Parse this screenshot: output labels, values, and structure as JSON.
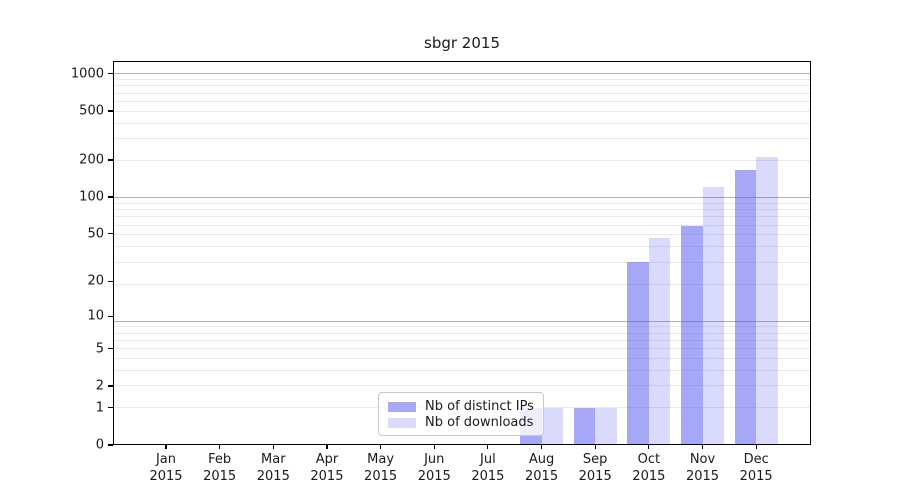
{
  "chart_data": {
    "type": "bar",
    "title": "sbgr 2015",
    "categories": [
      "Jan",
      "Feb",
      "Mar",
      "Apr",
      "May",
      "Jun",
      "Jul",
      "Aug",
      "Sep",
      "Oct",
      "Nov",
      "Dec"
    ],
    "category_year": "2015",
    "xlabel": "",
    "ylabel": "",
    "yscale": "log1p",
    "ytick_labels": [
      1000,
      500,
      200,
      100,
      50,
      20,
      10,
      5,
      2,
      1,
      0
    ],
    "ylim": [
      0,
      1270
    ],
    "grid": "both",
    "axis_color": "#000000",
    "grid_minor_color": "#e9e9e9",
    "grid_major_color": "#b0b0b0",
    "series": [
      {
        "name": "Nb of distinct IPs",
        "swatch_color": "#a8a8f7",
        "fill_rgba": "rgba(80,80,240,0.50)",
        "values": [
          0,
          0,
          0,
          0,
          0,
          0,
          0,
          1,
          1,
          29,
          58,
          166
        ]
      },
      {
        "name": "Nb of downloads",
        "swatch_color": "#dadafb",
        "fill_rgba": "rgba(80,80,240,0.21)",
        "values": [
          0,
          0,
          0,
          0,
          0,
          0,
          0,
          1,
          1,
          46,
          121,
          210
        ]
      }
    ],
    "legend": {
      "entries": [
        "Nb of distinct IPs",
        "Nb of downloads"
      ],
      "position": "lower center"
    }
  }
}
